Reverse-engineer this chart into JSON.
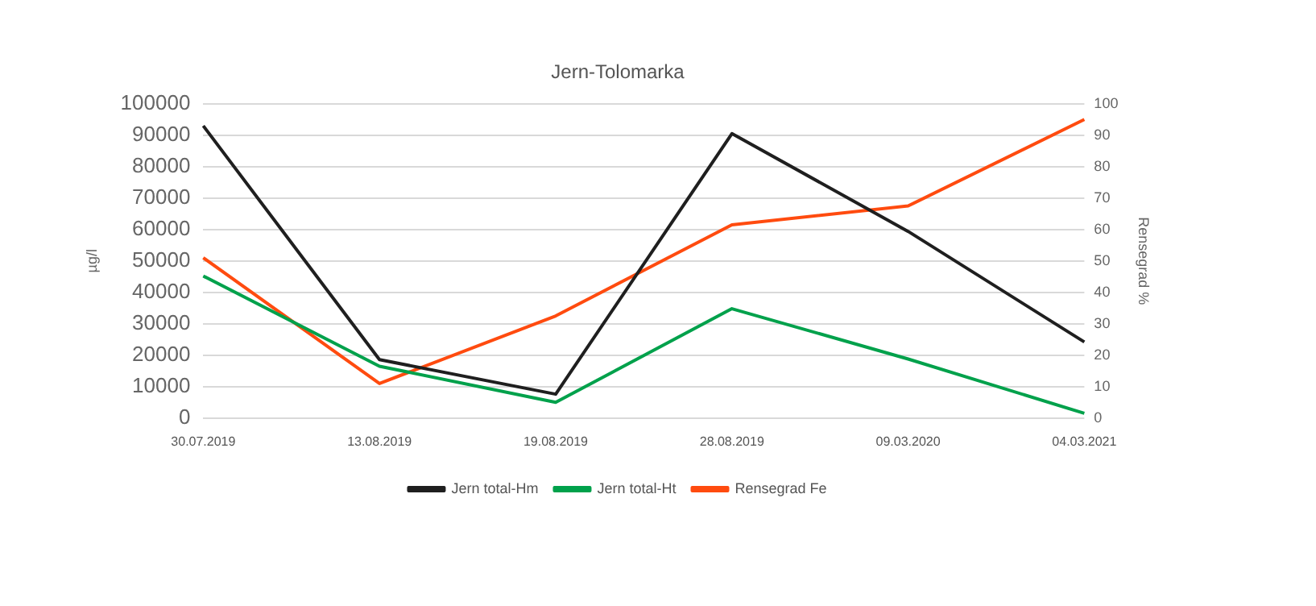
{
  "chart_data": {
    "type": "line",
    "title": "Jern-Tolomarka",
    "ylabel": "µg/l",
    "y2label": "Rensegrad %",
    "categories": [
      "30.07.2019",
      "13.08.2019",
      "19.08.2019",
      "28.08.2019",
      "09.03.2020",
      "04.03.2021"
    ],
    "series": [
      {
        "name": "Jern total-Hm",
        "color": "#1f1f1f",
        "values": [
          93000,
          18600,
          7600,
          90500,
          59400,
          24200
        ]
      },
      {
        "name": "Jern total-Ht",
        "color": "#00a14b",
        "values": [
          45200,
          16500,
          5000,
          34800,
          18800,
          1500
        ]
      },
      {
        "name": "Rensegrad Fe",
        "color": "#ff4b0f",
        "axis": "y2",
        "values": [
          51,
          11,
          32.5,
          61.5,
          67.5,
          95
        ]
      }
    ],
    "ylim": [
      0,
      100000
    ],
    "yticks": [
      0,
      10000,
      20000,
      30000,
      40000,
      50000,
      60000,
      70000,
      80000,
      90000,
      100000
    ],
    "y2lim": [
      0,
      100
    ],
    "y2ticks": [
      0,
      10,
      20,
      30,
      40,
      50,
      60,
      70,
      80,
      90,
      100
    ],
    "grid": "y",
    "legend": "bottom",
    "marker": "none",
    "line_style": "solid"
  }
}
